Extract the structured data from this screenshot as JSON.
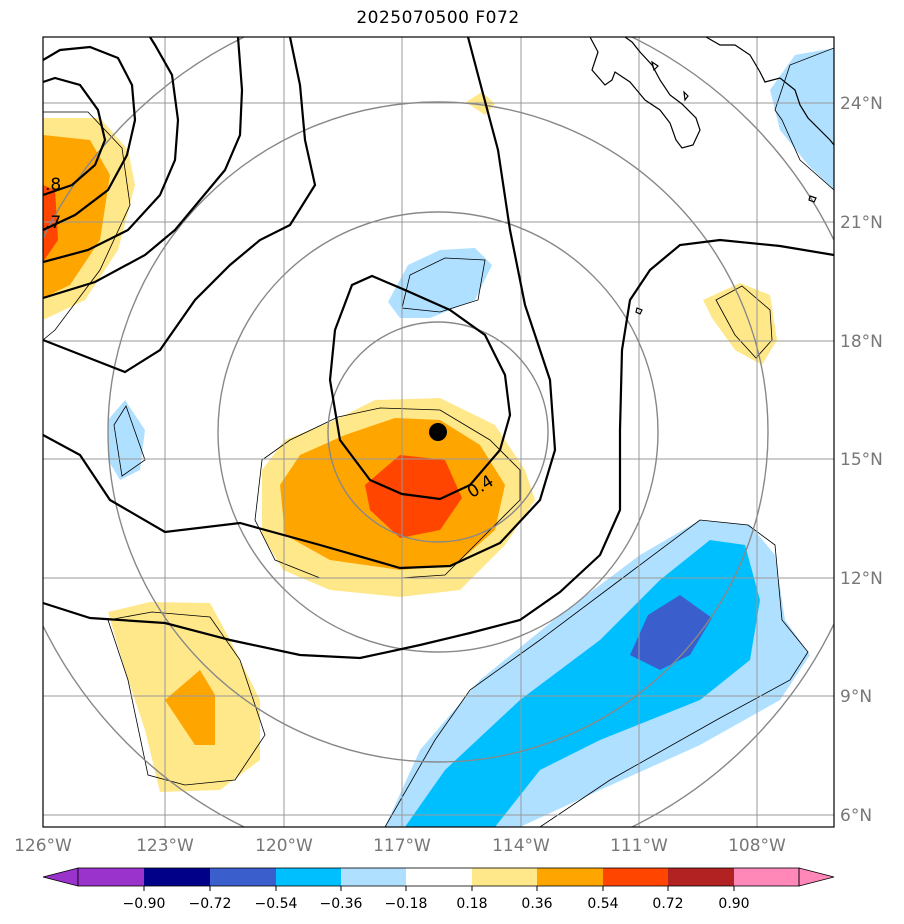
{
  "title": "2025070500 F072",
  "map": {
    "lon_ticks": [
      "126°W",
      "123°W",
      "120°W",
      "117°W",
      "114°W",
      "111°W",
      "108°W"
    ],
    "lat_ticks": [
      "24°N",
      "21°N",
      "18°N",
      "15°N",
      "12°N",
      "9°N",
      "6°N"
    ],
    "contour_labels": [
      ".8",
      ".7",
      "0.4"
    ],
    "storm_marker": "black-dot"
  },
  "colorbar": {
    "tick_labels": [
      "−0.90",
      "−0.72",
      "−0.54",
      "−0.36",
      "−0.18",
      "0.18",
      "0.36",
      "0.54",
      "0.72",
      "0.90"
    ],
    "colors": [
      "#9933cc",
      "#000088",
      "#3a5fcd",
      "#00bfff",
      "#b0e0ff",
      "#ffffff",
      "#ffe88a",
      "#ffa500",
      "#ff4500",
      "#b22222",
      "#ff88b8"
    ]
  },
  "colors": {
    "light_blue": "#b0e0ff",
    "blue": "#00bfff",
    "dark_blue": "#3a5fcd",
    "yellow": "#ffe88a",
    "orange": "#ffa500",
    "red_orange": "#ff4500",
    "grid": "#999999",
    "range_rings": "#888888"
  }
}
